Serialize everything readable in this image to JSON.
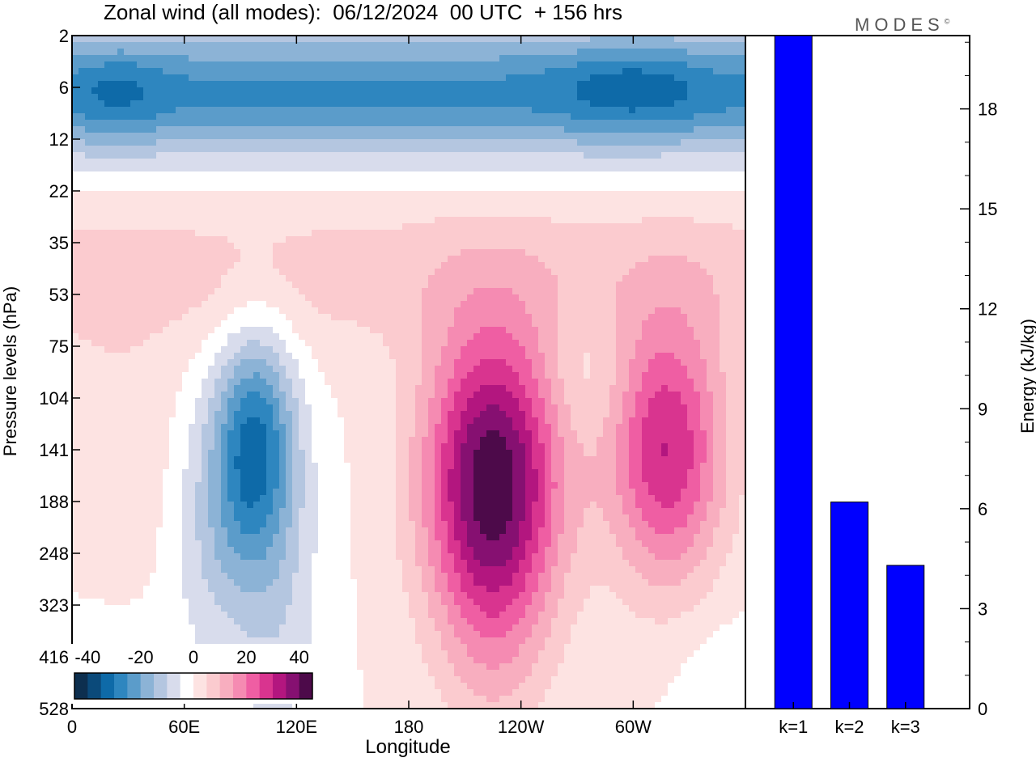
{
  "title": "Zonal wind (all modes):  06/12/2024  00 UTC  + 156 hrs",
  "brand": "MODES",
  "brand_mark": "©",
  "chart_data": [
    {
      "type": "heatmap",
      "xlabel": "Longitude",
      "ylabel": "Pressure levels (hPa)",
      "x_ticks": [
        "0",
        "60E",
        "120E",
        "180",
        "120W",
        "60W"
      ],
      "x_tick_degrees": [
        0,
        60,
        120,
        180,
        240,
        300
      ],
      "xlim": [
        0,
        360
      ],
      "y_ticks": [
        "2",
        "6",
        "12",
        "22",
        "35",
        "53",
        "75",
        "104",
        "141",
        "188",
        "248",
        "323",
        "416",
        "528"
      ],
      "colorbar": {
        "tick_labels": [
          "-40",
          "-20",
          "0",
          "20",
          "40"
        ],
        "range": [
          -45,
          45
        ],
        "colors": [
          "#0d2f4f",
          "#0b4a7a",
          "#0e6aa8",
          "#2e86bf",
          "#5b9cca",
          "#8cb3d6",
          "#b4c6e0",
          "#d8dcec",
          "#ffffff",
          "#fde3e2",
          "#fbcbcf",
          "#f8aebf",
          "#f58bb2",
          "#ef5ea3",
          "#d9348f",
          "#b3167f",
          "#861071",
          "#4d0a4a"
        ]
      },
      "features": [
        {
          "description": "easterly jet",
          "lon": [
            0,
            360
          ],
          "level": [
            4,
            14
          ],
          "value": -30
        },
        {
          "description": "westerly jet",
          "lon": [
            210,
            245
          ],
          "level": [
            100,
            190
          ],
          "value": 42
        },
        {
          "description": "westerly jet",
          "lon": [
            290,
            345
          ],
          "level": [
            100,
            190
          ],
          "value": 32
        },
        {
          "description": "easterly jet",
          "lon": [
            80,
            115
          ],
          "level": [
            90,
            170
          ],
          "value": -28
        }
      ]
    },
    {
      "type": "bar",
      "categories": [
        "k=1",
        "k=2",
        "k=3"
      ],
      "values": [
        20.2,
        6.2,
        4.3
      ],
      "ylabel": "Energy (kJ/kg)",
      "ylim": [
        0,
        20.2
      ],
      "y_ticks": [
        0,
        3,
        6,
        9,
        12,
        15,
        18
      ],
      "bar_color": "#0000ff"
    }
  ]
}
